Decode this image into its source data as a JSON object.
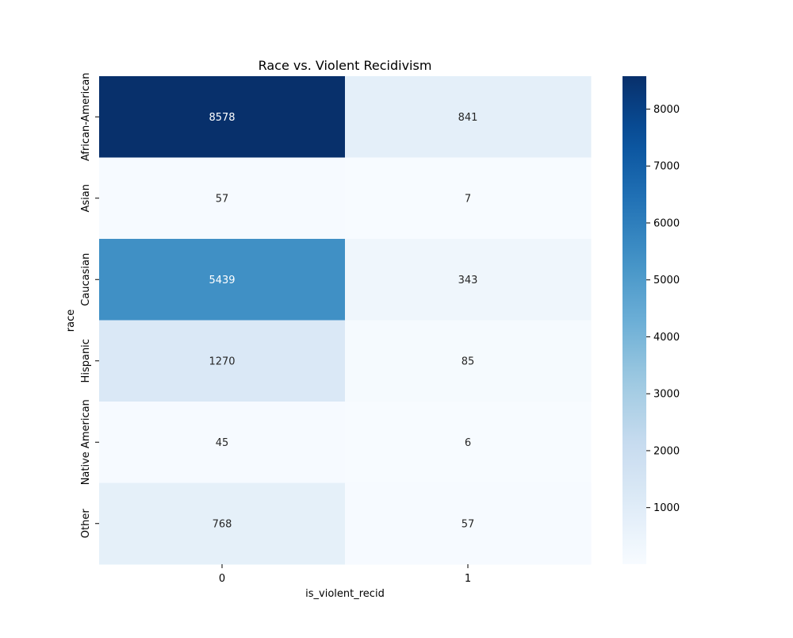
{
  "chart_data": {
    "type": "heatmap",
    "title": "Race vs. Violent Recidivism",
    "xlabel": "is_violent_recid",
    "ylabel": "race",
    "x_categories": [
      "0",
      "1"
    ],
    "y_categories": [
      "African-American",
      "Asian",
      "Caucasian",
      "Hispanic",
      "Native American",
      "Other"
    ],
    "values": [
      [
        8578,
        841
      ],
      [
        57,
        7
      ],
      [
        5439,
        343
      ],
      [
        1270,
        85
      ],
      [
        45,
        6
      ],
      [
        768,
        57
      ]
    ],
    "colormap": "Blues",
    "colorbar": {
      "range": [
        6,
        8578
      ],
      "ticks": [
        1000,
        2000,
        3000,
        4000,
        5000,
        6000,
        7000,
        8000
      ],
      "tick_labels": [
        "1000",
        "2000",
        "3000",
        "4000",
        "5000",
        "6000",
        "7000",
        "8000"
      ]
    },
    "annotated": true,
    "grid": false
  }
}
